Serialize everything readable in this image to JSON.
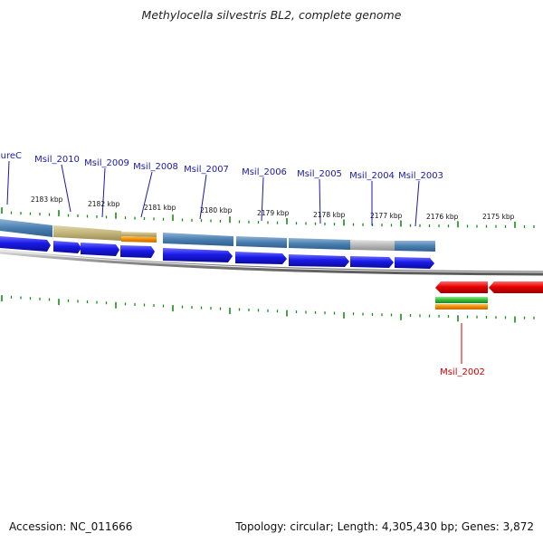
{
  "title": "Methylocella silvestris BL2, complete genome",
  "footer": {
    "accession": "Accession: NC_011666",
    "summary": "Topology: circular; Length: 4,305,430 bp; Genes: 3,872"
  },
  "scale_labels": [
    "2183 kbp",
    "2182 kbp",
    "2181 kbp",
    "2180 kbp",
    "2179 kbp",
    "2178 kbp",
    "2177 kbp",
    "2176 kbp",
    "2175 kbp"
  ],
  "forward_genes": [
    "ureC",
    "Msil_2010",
    "Msil_2009",
    "Msil_2008",
    "Msil_2007",
    "Msil_2006",
    "Msil_2005",
    "Msil_2004",
    "Msil_2003"
  ],
  "reverse_genes": [
    "Msil_2002"
  ],
  "colors": {
    "forward_label": "#1a1aa6",
    "reverse_label": "#cc0000",
    "gene_blue": "#1010e0",
    "gene_red": "#e00000",
    "tick": "#1a8a1a",
    "cog_blue": "#4a7fb0",
    "cog_khaki": "#c2b47a",
    "cog_gray": "#b8b8b8",
    "cog_orange": "#f08a00",
    "cog_green": "#33bb33"
  }
}
